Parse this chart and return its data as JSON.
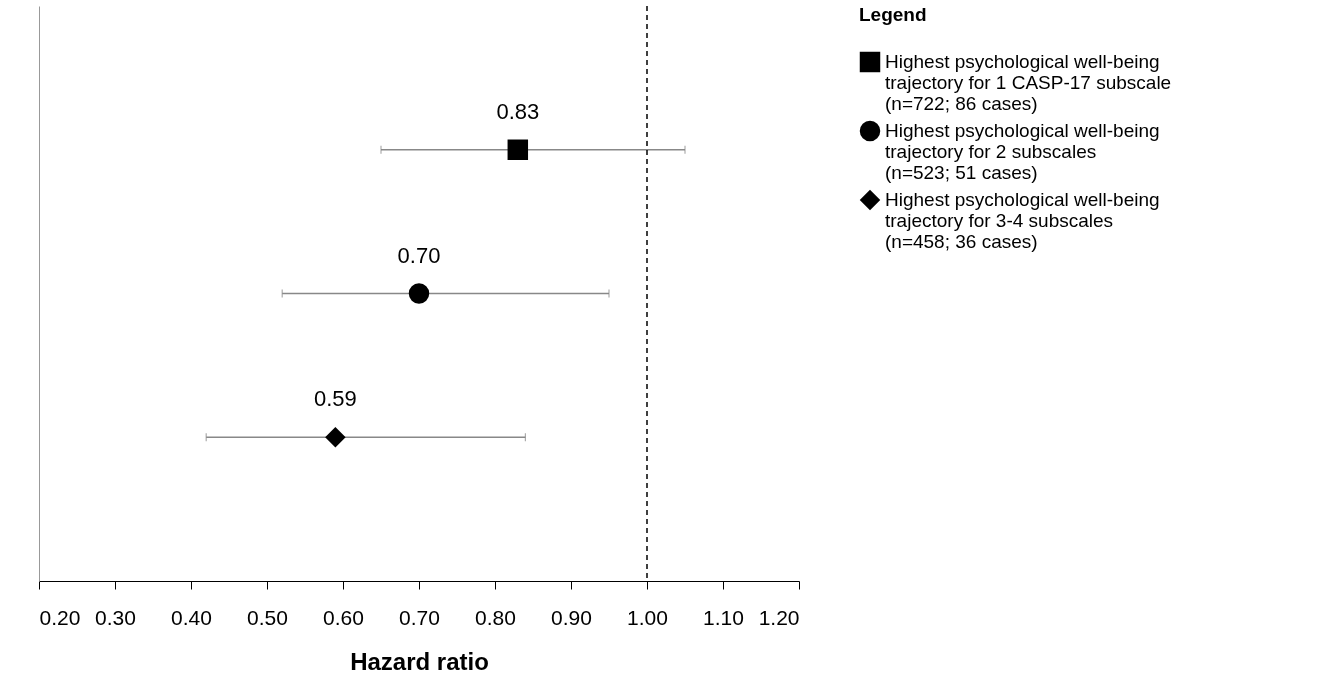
{
  "chart_data": {
    "type": "scatter",
    "orientation": "horizontal",
    "categories": [
      null,
      null,
      null
    ],
    "series": [
      {
        "name": "Highest psychological well-being trajectory for 1 CASP-17 subscale (n=722; 86 cases)",
        "color": "#000000",
        "marker": "square",
        "values": [
          0.83,
          null,
          null
        ],
        "errors": [
          [
            0.65,
            1.05
          ],
          null,
          null
        ],
        "value_labels": [
          "0.83",
          null,
          null
        ]
      },
      {
        "name": "Highest psychological well-being trajectory for 2 subscales (n=523; 51 cases)",
        "color": "#000000",
        "marker": "circle",
        "values": [
          null,
          0.7,
          null
        ],
        "errors": [
          null,
          [
            0.52,
            0.95
          ],
          null
        ],
        "value_labels": [
          null,
          "0.70",
          null
        ]
      },
      {
        "name": "Highest psychological well-being trajectory for 3-4 subscales (n=458; 36 cases)",
        "color": "#000000",
        "marker": "diamond",
        "values": [
          null,
          null,
          0.59
        ],
        "errors": [
          null,
          null,
          [
            0.42,
            0.84
          ]
        ],
        "value_labels": [
          null,
          null,
          "0.59"
        ]
      }
    ],
    "xlabel": "Hazard ratio",
    "legend_title": "Legend",
    "legend": "right",
    "grid": false,
    "tick_labels": "x",
    "xlim": [
      0.2,
      1.2
    ],
    "xticks": [
      {
        "value": 0.2,
        "label": "0.20"
      },
      {
        "value": 0.3,
        "label": "0.30"
      },
      {
        "value": 0.4,
        "label": "0.40"
      },
      {
        "value": 0.5,
        "label": "0.50"
      },
      {
        "value": 0.6,
        "label": "0.60"
      },
      {
        "value": 0.7,
        "label": "0.70"
      },
      {
        "value": 0.8,
        "label": "0.80"
      },
      {
        "value": 0.9,
        "label": "0.90"
      },
      {
        "value": 1.0,
        "label": "1.00"
      },
      {
        "value": 1.1,
        "label": "1.10"
      },
      {
        "value": 1.2,
        "label": "1.20"
      }
    ],
    "ref_lines": [
      {
        "axis": "x",
        "value": 1.0,
        "label": null,
        "color": "#000000",
        "line_style": "dashed"
      }
    ]
  }
}
